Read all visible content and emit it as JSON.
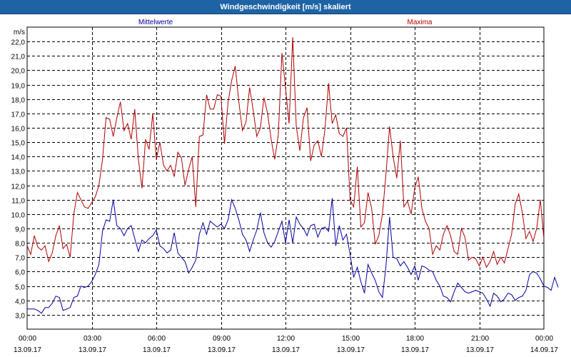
{
  "window": {
    "title": "Windgeschwindigkeit [m/s] skaliert"
  },
  "chart_data": {
    "type": "line",
    "title": "Windgeschwindigkeit [m/s] skaliert",
    "ylabel": "m/s",
    "xlabel": "",
    "ylim": [
      2.0,
      23.0
    ],
    "y_ticks": [
      "3,0",
      "4,0",
      "5,0",
      "6,0",
      "7,0",
      "8,0",
      "9,0",
      "10,0",
      "11,0",
      "12,0",
      "13,0",
      "14,0",
      "15,0",
      "16,0",
      "17,0",
      "18,0",
      "19,0",
      "20,0",
      "21,0",
      "22,0"
    ],
    "x_ticks": [
      {
        "time": "00:00",
        "date": "13.09.17"
      },
      {
        "time": "03:00",
        "date": "13.09.17"
      },
      {
        "time": "06:00",
        "date": "13.09.17"
      },
      {
        "time": "09:00",
        "date": "13.09.17"
      },
      {
        "time": "12:00",
        "date": "13.09.17"
      },
      {
        "time": "15:00",
        "date": "13.09.17"
      },
      {
        "time": "18:00",
        "date": "13.09.17"
      },
      {
        "time": "21:00",
        "date": "13.09.17"
      },
      {
        "time": "00:00",
        "date": "14.09.17"
      }
    ],
    "grid": true,
    "legend": "top",
    "series": [
      {
        "name": "Mittelwerte",
        "color": "#0000a0",
        "time_step_min": 10,
        "values": [
          3.4,
          3.4,
          3.4,
          3.3,
          3.1,
          3.5,
          3.5,
          3.8,
          4.3,
          4.2,
          3.3,
          3.4,
          3.5,
          4.2,
          4.3,
          5.0,
          4.9,
          5.0,
          5.3,
          5.8,
          6.5,
          8.8,
          9.6,
          9.5,
          11.0,
          9.2,
          9.0,
          8.5,
          9.0,
          9.2,
          8.3,
          7.4,
          8.2,
          8.0,
          8.3,
          8.5,
          8.9,
          7.8,
          7.6,
          7.3,
          7.5,
          8.7,
          7.3,
          7.0,
          6.7,
          5.9,
          6.3,
          6.8,
          8.6,
          9.4,
          8.6,
          9.5,
          9.3,
          9.1,
          9.3,
          9.0,
          9.6,
          11.0,
          10.4,
          9.6,
          8.6,
          8.2,
          7.4,
          8.2,
          8.9,
          10.1,
          8.7,
          8.0,
          7.7,
          8.1,
          8.8,
          9.5,
          8.0,
          9.6,
          8.0,
          9.8,
          9.3,
          9.0,
          8.5,
          9.2,
          9.3,
          8.4,
          9.0,
          9.1,
          8.8,
          11.1,
          7.8,
          9.2,
          8.2,
          8.6,
          7.2,
          5.6,
          6.3,
          5.3,
          4.5,
          6.5,
          5.9,
          5.4,
          4.6,
          4.2,
          6.4,
          9.8,
          7.0,
          6.9,
          6.4,
          6.7,
          6.3,
          5.8,
          6.4,
          5.4,
          6.4,
          6.3,
          6.1,
          6.0,
          5.4,
          5.0,
          4.3,
          4.2,
          3.9,
          4.6,
          5.2,
          4.9,
          4.6,
          4.5,
          4.6,
          4.7,
          4.6,
          4.5,
          4.1,
          3.6,
          4.5,
          4.3,
          3.9,
          4.1,
          4.5,
          4.4,
          4.0,
          4.2,
          4.3,
          4.7,
          5.8,
          6.0,
          5.9,
          5.5,
          5.0,
          4.9,
          4.7,
          5.6,
          4.9
        ]
      },
      {
        "name": "Maxima",
        "color": "#b00000",
        "time_step_min": 10,
        "values": [
          7.8,
          7.2,
          8.5,
          7.7,
          7.5,
          7.8,
          6.7,
          7.3,
          8.5,
          9.2,
          7.6,
          7.9,
          7.0,
          10.0,
          11.5,
          11.0,
          10.5,
          10.4,
          10.8,
          11.2,
          12.0,
          13.8,
          16.7,
          16.6,
          15.4,
          16.7,
          17.8,
          15.8,
          16.3,
          15.2,
          17.3,
          13.8,
          11.8,
          15.2,
          14.5,
          17.0,
          13.8,
          15.0,
          13.4,
          13.0,
          13.4,
          12.6,
          14.3,
          13.9,
          12.0,
          13.1,
          14.0,
          10.5,
          15.4,
          15.5,
          18.3,
          17.3,
          17.3,
          18.3,
          18.2,
          14.9,
          17.8,
          19.3,
          20.3,
          17.8,
          15.8,
          16.4,
          18.8,
          17.2,
          15.4,
          16.0,
          18.1,
          17.0,
          15.2,
          13.8,
          15.5,
          21.2,
          18.8,
          16.3,
          22.3,
          16.1,
          14.4,
          16.7,
          17.4,
          13.7,
          14.8,
          15.1,
          14.0,
          15.9,
          19.1,
          16.3,
          16.9,
          15.6,
          15.4,
          16.0,
          11.0,
          10.5,
          13.3,
          9.1,
          9.4,
          11.5,
          10.4,
          7.9,
          8.5,
          10.0,
          12.8,
          16.1,
          14.0,
          12.5,
          15.1,
          10.5,
          10.9,
          10.0,
          11.8,
          12.6,
          10.4,
          9.5,
          9.0,
          7.2,
          7.8,
          7.5,
          8.6,
          9.2,
          8.5,
          7.4,
          7.2,
          9.0,
          8.4,
          6.8,
          7.0,
          6.9,
          6.4,
          7.0,
          6.3,
          6.7,
          7.4,
          6.5,
          7.0,
          6.6,
          7.6,
          8.6,
          10.7,
          11.4,
          10.1,
          8.3,
          8.8,
          8.1,
          9.0,
          11.0,
          8.3
        ]
      }
    ]
  }
}
